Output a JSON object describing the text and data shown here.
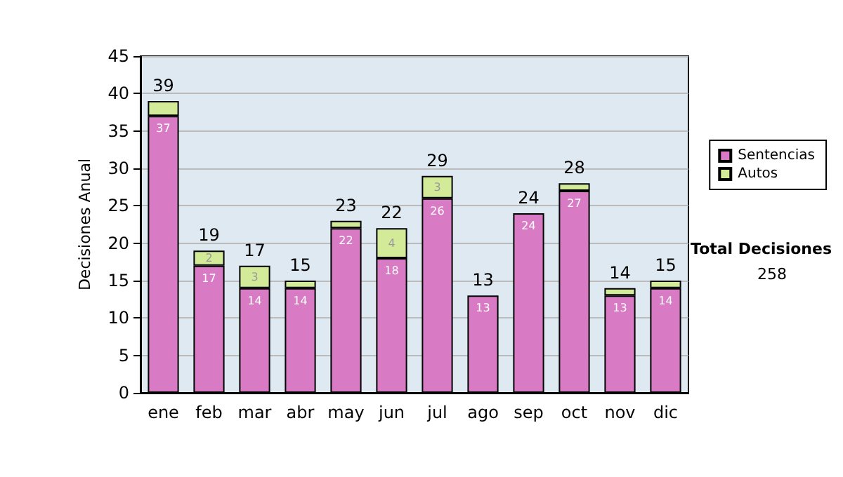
{
  "chart_data": {
    "type": "bar",
    "stacked": true,
    "ylabel": "Decisiones Anual",
    "categories": [
      "ene",
      "feb",
      "mar",
      "abr",
      "may",
      "jun",
      "jul",
      "ago",
      "sep",
      "oct",
      "nov",
      "dic"
    ],
    "series": [
      {
        "name": "Sentencias",
        "color": "#d97ac4",
        "values": [
          37,
          17,
          14,
          14,
          22,
          18,
          26,
          13,
          24,
          27,
          13,
          14
        ],
        "value_labels": [
          "37",
          "17",
          "14",
          "14",
          "22",
          "18",
          "26",
          "13",
          "24",
          "27",
          "13",
          "14"
        ]
      },
      {
        "name": "Autos",
        "color": "#d3eb99",
        "values": [
          2,
          2,
          3,
          1,
          1,
          4,
          3,
          0,
          0,
          1,
          1,
          1
        ],
        "value_labels": [
          null,
          "2",
          "3",
          null,
          null,
          "4",
          "3",
          null,
          null,
          null,
          null,
          null
        ]
      }
    ],
    "totals": [
      "39",
      "19",
      "17",
      "15",
      "23",
      "22",
      "29",
      "13",
      "24",
      "28",
      "14",
      "15"
    ],
    "ylim": [
      0,
      45
    ],
    "yticks": [
      0,
      5,
      10,
      15,
      20,
      25,
      30,
      35,
      40,
      45
    ],
    "grid": "y",
    "legend": "right",
    "annotations": [
      "Total Decisiones",
      "258"
    ]
  }
}
